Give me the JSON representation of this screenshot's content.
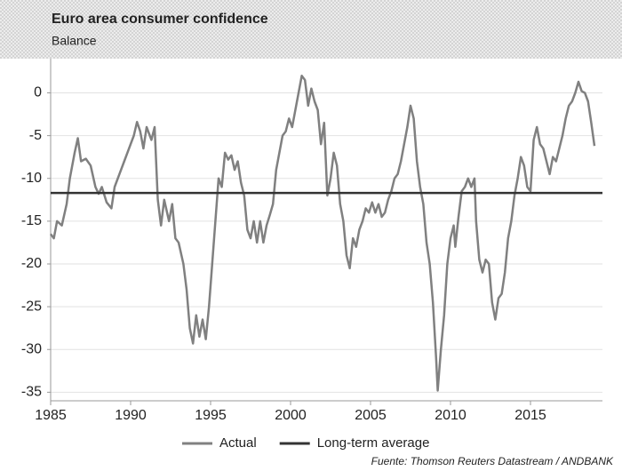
{
  "chart_data": {
    "type": "line",
    "title": "Euro area consumer confidence",
    "subtitle": "Balance",
    "source": "Fuente: Thomson Reuters Datastream / ANDBANK",
    "x": [
      1985.0,
      1985.2,
      1985.4,
      1985.7,
      1986.0,
      1986.2,
      1986.5,
      1986.7,
      1986.9,
      1987.2,
      1987.5,
      1987.8,
      1988.0,
      1988.2,
      1988.5,
      1988.8,
      1989.0,
      1989.3,
      1989.6,
      1989.9,
      1990.2,
      1990.4,
      1990.6,
      1990.8,
      1991.0,
      1991.3,
      1991.5,
      1991.7,
      1991.9,
      1992.1,
      1992.4,
      1992.6,
      1992.8,
      1993.0,
      1993.3,
      1993.5,
      1993.7,
      1993.9,
      1994.1,
      1994.3,
      1994.5,
      1994.7,
      1994.9,
      1995.1,
      1995.3,
      1995.5,
      1995.7,
      1995.9,
      1996.1,
      1996.3,
      1996.5,
      1996.7,
      1996.9,
      1997.1,
      1997.3,
      1997.5,
      1997.7,
      1997.9,
      1998.1,
      1998.3,
      1998.5,
      1998.7,
      1998.9,
      1999.1,
      1999.3,
      1999.5,
      1999.7,
      1999.9,
      2000.1,
      2000.3,
      2000.5,
      2000.7,
      2000.9,
      2001.1,
      2001.3,
      2001.5,
      2001.7,
      2001.9,
      2002.1,
      2002.3,
      2002.5,
      2002.7,
      2002.9,
      2003.1,
      2003.3,
      2003.5,
      2003.7,
      2003.9,
      2004.1,
      2004.3,
      2004.5,
      2004.7,
      2004.9,
      2005.1,
      2005.3,
      2005.5,
      2005.7,
      2005.9,
      2006.1,
      2006.3,
      2006.5,
      2006.7,
      2006.9,
      2007.1,
      2007.3,
      2007.5,
      2007.7,
      2007.9,
      2008.1,
      2008.3,
      2008.5,
      2008.7,
      2008.9,
      2009.1,
      2009.2,
      2009.4,
      2009.6,
      2009.8,
      2010.0,
      2010.2,
      2010.3,
      2010.5,
      2010.7,
      2010.9,
      2011.1,
      2011.3,
      2011.5,
      2011.6,
      2011.8,
      2012.0,
      2012.2,
      2012.4,
      2012.6,
      2012.8,
      2013.0,
      2013.2,
      2013.4,
      2013.6,
      2013.8,
      2014.0,
      2014.2,
      2014.4,
      2014.6,
      2014.8,
      2015.0,
      2015.2,
      2015.4,
      2015.6,
      2015.8,
      2016.0,
      2016.2,
      2016.4,
      2016.6,
      2016.8,
      2017.0,
      2017.2,
      2017.4,
      2017.6,
      2017.8,
      2018.0,
      2018.2,
      2018.4,
      2018.6,
      2018.8,
      2019.0
    ],
    "series": [
      {
        "name": "Actual",
        "color": "#808080",
        "values": [
          -16.5,
          -17,
          -15,
          -15.5,
          -13,
          -10,
          -7,
          -5.3,
          -8,
          -7.7,
          -8.5,
          -11,
          -11.8,
          -11,
          -12.8,
          -13.5,
          -11,
          -9.5,
          -8,
          -6.5,
          -5,
          -3.4,
          -4.5,
          -6.5,
          -4,
          -5.5,
          -4,
          -12.5,
          -15.5,
          -12.5,
          -15,
          -13,
          -17,
          -17.5,
          -20,
          -23,
          -27.5,
          -29.3,
          -26,
          -28.5,
          -26.5,
          -28.8,
          -25,
          -20,
          -15,
          -10,
          -11,
          -7,
          -7.8,
          -7.3,
          -9,
          -8,
          -10.5,
          -12,
          -16,
          -17,
          -15,
          -17.5,
          -15,
          -17.5,
          -15.5,
          -14.3,
          -13,
          -9,
          -7,
          -5,
          -4.5,
          -3,
          -4,
          -2,
          0,
          2,
          1.5,
          -1.5,
          0.5,
          -1,
          -2,
          -6,
          -3.5,
          -12,
          -10,
          -7,
          -8.5,
          -13,
          -15,
          -19,
          -20.5,
          -17,
          -18,
          -16,
          -15,
          -13.5,
          -14,
          -12.8,
          -14,
          -13,
          -14.5,
          -14,
          -12.5,
          -11.5,
          -10,
          -9.5,
          -8,
          -6,
          -4,
          -1.5,
          -3,
          -8,
          -11,
          -13,
          -17.5,
          -20,
          -24.5,
          -31,
          -34.8,
          -30,
          -26,
          -20,
          -17,
          -15.5,
          -18,
          -14.5,
          -11.5,
          -11,
          -10,
          -11,
          -10,
          -15,
          -19.5,
          -21,
          -19.5,
          -20,
          -24.5,
          -26.5,
          -24,
          -23.5,
          -21,
          -17,
          -15,
          -12,
          -10,
          -7.5,
          -8.5,
          -11,
          -11.5,
          -5.5,
          -4,
          -6,
          -6.5,
          -8,
          -9.5,
          -7.5,
          -8,
          -6.5,
          -5,
          -3,
          -1.5,
          -1,
          0,
          1.3,
          0.2,
          0,
          -1,
          -3.5,
          -6.2
        ]
      }
    ],
    "reference_lines": [
      {
        "name": "Long-term average",
        "value": -11.7,
        "color": "#333333"
      }
    ],
    "xlim": [
      1985,
      2019.5
    ],
    "xticks": [
      1985,
      1990,
      1995,
      2000,
      2005,
      2010,
      2015
    ],
    "ylim": [
      -36,
      4
    ],
    "yticks": [
      0,
      -5,
      -10,
      -15,
      -20,
      -25,
      -30,
      -35
    ],
    "grid": true
  }
}
